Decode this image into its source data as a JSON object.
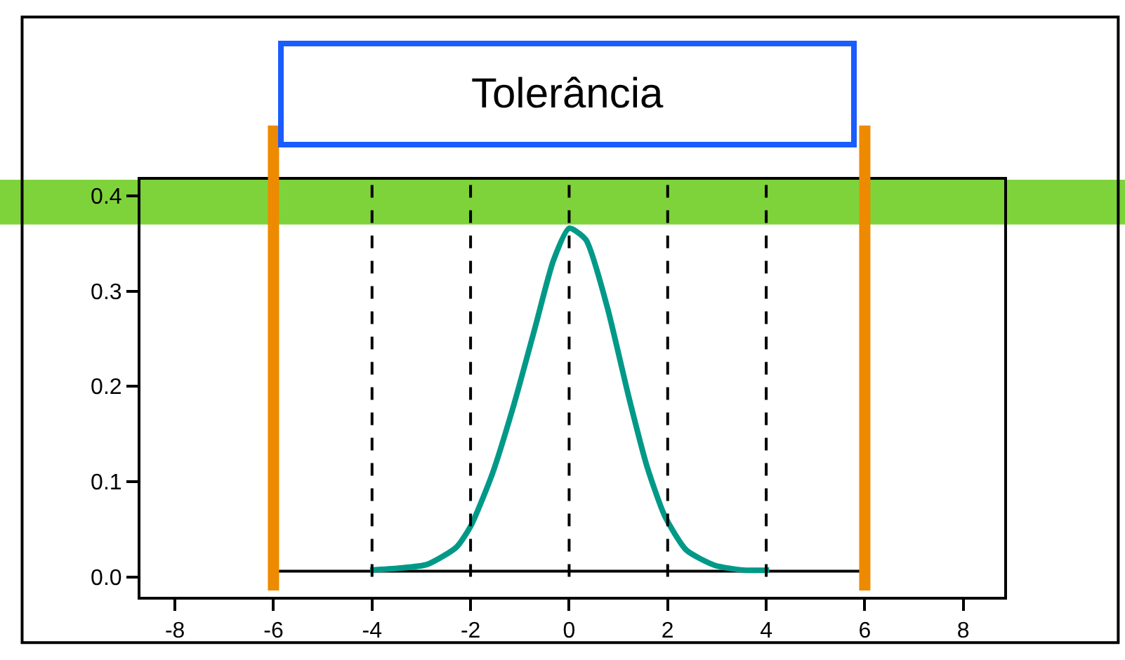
{
  "chart_data": {
    "type": "line",
    "title": "Tolerância",
    "xlim": [
      -8.7,
      8.83
    ],
    "xticks": [
      -8,
      -6,
      -4,
      -2,
      0,
      2,
      4,
      6,
      8
    ],
    "ylim": [
      -0.021,
      0.417
    ],
    "yticks": [
      {
        "value": 0,
        "label": "0.0"
      },
      {
        "value": 0.1,
        "label": "0.1"
      },
      {
        "value": 0.2,
        "label": "0.2"
      },
      {
        "value": 0.3,
        "label": "0.3"
      },
      {
        "value": 0.4,
        "label": "0.4"
      }
    ],
    "series": [
      {
        "color": "#000000",
        "x": [
          -5.9,
          5.9
        ],
        "values": [
          0.006,
          0.006
        ]
      },
      {
        "color": "#009988",
        "x": [
          -4.04,
          -3.46,
          -2.88,
          -2.29,
          -2.0,
          -1.56,
          -1.12,
          -0.69,
          -0.32,
          0,
          0.34,
          0.77,
          1.21,
          1.58,
          1.94,
          2.38,
          2.96,
          3.55,
          4.06
        ],
        "values": [
          0.007,
          0.009,
          0.013,
          0.031,
          0.053,
          0.108,
          0.181,
          0.262,
          0.332,
          0.366,
          0.354,
          0.284,
          0.189,
          0.116,
          0.064,
          0.028,
          0.012,
          0.007,
          0.007
        ]
      }
    ],
    "ref_lines": [
      {
        "axis": "x",
        "value": -4,
        "color": "#000000",
        "line_style": "dashed"
      },
      {
        "axis": "x",
        "value": -2,
        "color": "#000000",
        "line_style": "dashed"
      },
      {
        "axis": "x",
        "value": 0,
        "color": "#000000",
        "line_style": "dashed"
      },
      {
        "axis": "x",
        "value": 2,
        "color": "#000000",
        "line_style": "dashed"
      },
      {
        "axis": "x",
        "value": 4,
        "color": "#000000",
        "line_style": "dashed"
      },
      {
        "axis": "x",
        "value": -6,
        "color": "#ee8a00",
        "line_style": "solid"
      },
      {
        "axis": "x",
        "value": 6,
        "color": "#ee8a00",
        "line_style": "solid"
      }
    ],
    "bands": [
      {
        "axis": "y",
        "from": 0.37,
        "to": 0.43,
        "color": "#7ed33b"
      }
    ],
    "grid": false,
    "marker": "none",
    "line_style": "solid"
  }
}
